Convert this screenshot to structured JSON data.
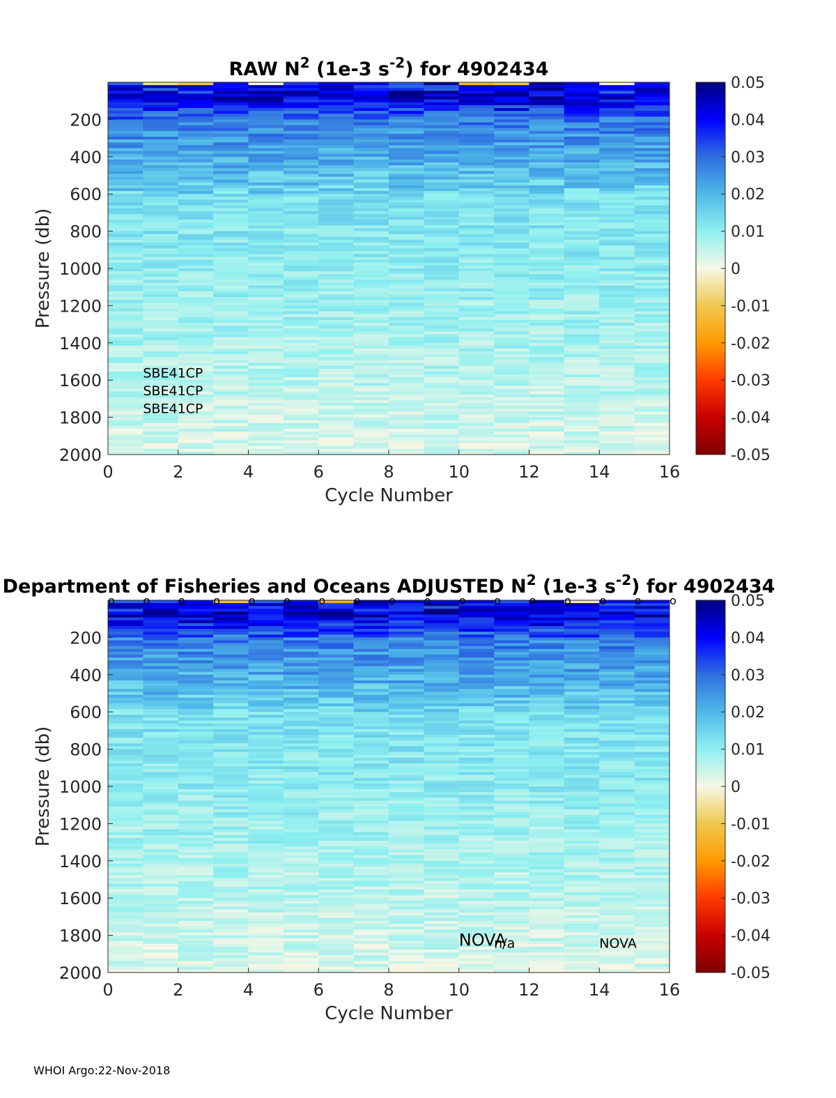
{
  "footer": "WHOI Argo:22-Nov-2018",
  "colorbar": {
    "ticks": [
      "0.05",
      "0.04",
      "0.03",
      "0.02",
      "0.01",
      "0",
      "-0.01",
      "-0.02",
      "-0.03",
      "-0.04",
      "-0.05"
    ],
    "colormap": "blue-cyan-white-yellow-red",
    "colors": [
      "#00007f",
      "#0000ff",
      "#2f6fe0",
      "#4fb8e8",
      "#8ff0f0",
      "#f7f7e6",
      "#f0c850",
      "#ff9a00",
      "#ff3a00",
      "#c80000",
      "#7f0000"
    ]
  },
  "chart_data": [
    {
      "type": "heatmap",
      "title": "RAW N² (1e-3 s⁻²) for 4902434",
      "title_parts": {
        "pre": "RAW N",
        "sup1": "2",
        "mid": " (1e-3 s",
        "sup2": "-2",
        "post": ") for 4902434"
      },
      "xlabel": "Cycle Number",
      "ylabel": "Pressure (db)",
      "xlim": [
        0,
        16
      ],
      "ylim": [
        2000,
        0
      ],
      "xticks": [
        "0",
        "2",
        "4",
        "6",
        "8",
        "10",
        "12",
        "14",
        "16"
      ],
      "yticks": [
        "200",
        "400",
        "600",
        "800",
        "1000",
        "1200",
        "1400",
        "1600",
        "1800",
        "2000"
      ],
      "cycles": [
        1,
        2,
        3,
        4,
        5,
        6,
        7,
        8,
        9,
        10,
        11,
        12,
        13,
        14,
        15,
        16
      ],
      "clim": [
        -0.05,
        0.05
      ],
      "annotations": [
        {
          "text": "SBE41CP",
          "x": 1,
          "y": 1560
        },
        {
          "text": "SBE41CP",
          "x": 1,
          "y": 1655
        },
        {
          "text": "SBE41CP",
          "x": 1,
          "y": 1750
        }
      ],
      "markers": []
    },
    {
      "type": "heatmap",
      "title": "Department of Fisheries and Oceans  ADJUSTED N² (1e-3 s⁻²) for 4902434",
      "title_parts": {
        "pre": "Department of Fisheries and Oceans  ADJUSTED N",
        "sup1": "2",
        "mid": " (1e-3 s",
        "sup2": "-2",
        "post": ") for 4902434"
      },
      "xlabel": "Cycle Number",
      "ylabel": "Pressure (db)",
      "xlim": [
        0,
        16
      ],
      "ylim": [
        2000,
        0
      ],
      "xticks": [
        "0",
        "2",
        "4",
        "6",
        "8",
        "10",
        "12",
        "14",
        "16"
      ],
      "yticks": [
        "200",
        "400",
        "600",
        "800",
        "1000",
        "1200",
        "1400",
        "1600",
        "1800",
        "2000"
      ],
      "cycles": [
        1,
        2,
        3,
        4,
        5,
        6,
        7,
        8,
        9,
        10,
        11,
        12,
        13,
        14,
        15,
        16
      ],
      "clim": [
        -0.05,
        0.05
      ],
      "annotations": [
        {
          "text": "NOVA",
          "x": 10,
          "y": 1830,
          "big": true
        },
        {
          "text": "n/a",
          "x": 11,
          "y": 1840
        },
        {
          "text": "NOVA",
          "x": 14,
          "y": 1840
        }
      ],
      "markers": [
        {
          "text": "o",
          "x": 0
        },
        {
          "text": "o",
          "x": 1
        },
        {
          "text": "o",
          "x": 2
        },
        {
          "text": "o",
          "x": 3
        },
        {
          "text": "o",
          "x": 4
        },
        {
          "text": "o",
          "x": 5
        },
        {
          "text": "o",
          "x": 6
        },
        {
          "text": "o",
          "x": 7
        },
        {
          "text": "o",
          "x": 8
        },
        {
          "text": "o",
          "x": 9
        },
        {
          "text": "o",
          "x": 10
        },
        {
          "text": "o",
          "x": 11
        },
        {
          "text": "o",
          "x": 12
        },
        {
          "text": "o",
          "x": 13
        },
        {
          "text": "o",
          "x": 14
        },
        {
          "text": "o",
          "x": 15
        },
        {
          "text": "o",
          "x": 16
        }
      ]
    }
  ]
}
